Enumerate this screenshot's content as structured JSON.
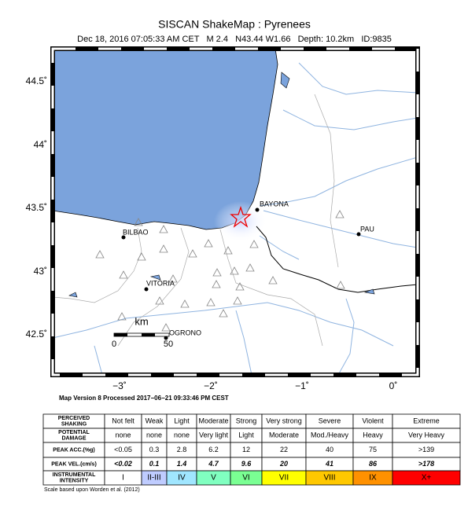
{
  "header": {
    "title": "SISCAN ShakeMap : Pyrenees",
    "subtitle": "Dec 18, 2016 07:05:33 AM CET   M 2.4   N43.44 W1.66   Depth: 10.2km   ID:9835"
  },
  "map": {
    "lat_labels": [
      "44.5˚",
      "44˚",
      "43.5˚",
      "43˚",
      "42.5˚"
    ],
    "lon_labels": [
      "−3˚",
      "−2˚",
      "−1˚",
      "0˚"
    ],
    "cities": [
      "BAYONA",
      "BILBAO",
      "PAU",
      "VITORIA",
      "OGRONO"
    ],
    "scale": {
      "unit": "km",
      "start": "0",
      "end": "50"
    }
  },
  "version_note": "Map Version 8 Processed 2017−06−21 09:33:46 PM CEST",
  "table": {
    "rows": [
      {
        "label": [
          "PERCEIVED",
          "SHAKING"
        ],
        "cells": [
          "Not felt",
          "Weak",
          "Light",
          "Moderate",
          "Strong",
          "Very strong",
          "Severe",
          "Violent",
          "Extreme"
        ]
      },
      {
        "label": [
          "POTENTIAL",
          "DAMAGE"
        ],
        "cells": [
          "none",
          "none",
          "none",
          "Very light",
          "Light",
          "Moderate",
          "Mod./Heavy",
          "Heavy",
          "Very Heavy"
        ]
      },
      {
        "label": [
          "PEAK ACC.(%g)"
        ],
        "cells": [
          "<0.05",
          "0.3",
          "2.8",
          "6.2",
          "12",
          "22",
          "40",
          "75",
          ">139"
        ]
      },
      {
        "label": [
          "PEAK VEL.(cm/s)"
        ],
        "cells": [
          "<0.02",
          "0.1",
          "1.4",
          "4.7",
          "9.6",
          "20",
          "41",
          "86",
          ">178"
        ]
      },
      {
        "label": [
          "INSTRUMENTAL",
          "INTENSITY"
        ],
        "cells": [
          "I",
          "II-III",
          "IV",
          "V",
          "VI",
          "VII",
          "VIII",
          "IX",
          "X+"
        ],
        "colors": [
          "#ffffff",
          "#bfccff",
          "#a0e6ff",
          "#80ffc0",
          "#7aff93",
          "#ffff00",
          "#ffc800",
          "#ff9100",
          "#ff0000"
        ]
      }
    ]
  },
  "footnote": "Scale based upon Worden et al. (2012)"
}
